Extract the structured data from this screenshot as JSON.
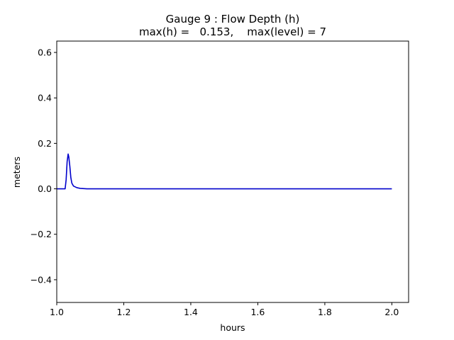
{
  "chart_data": {
    "type": "line",
    "title": "Gauge 9 : Flow Depth (h)",
    "subtitle": "max(h) =   0.153,    max(level) = 7",
    "xlabel": "hours",
    "ylabel": "meters",
    "xlim": [
      1.0,
      2.05
    ],
    "ylim": [
      -0.5,
      0.65
    ],
    "xticks": [
      "1.0",
      "1.2",
      "1.4",
      "1.6",
      "1.8",
      "2.0"
    ],
    "xtick_values": [
      1.0,
      1.2,
      1.4,
      1.6,
      1.8,
      2.0
    ],
    "yticks": [
      "−0.4",
      "−0.2",
      "0.0",
      "0.2",
      "0.4",
      "0.6"
    ],
    "ytick_values": [
      -0.4,
      -0.2,
      0.0,
      0.2,
      0.4,
      0.6
    ],
    "grid": false,
    "series": [
      {
        "color": "#0000cc",
        "x": [
          1.0,
          1.025,
          1.028,
          1.031,
          1.034,
          1.036,
          1.039,
          1.042,
          1.045,
          1.05,
          1.06,
          1.07,
          1.09,
          1.2,
          1.4,
          1.6,
          1.8,
          2.0
        ],
        "y": [
          0.0,
          0.0,
          0.04,
          0.12,
          0.153,
          0.14,
          0.1,
          0.05,
          0.025,
          0.012,
          0.005,
          0.002,
          0.0,
          0.0,
          0.0,
          0.0,
          0.0,
          0.0
        ]
      }
    ]
  }
}
